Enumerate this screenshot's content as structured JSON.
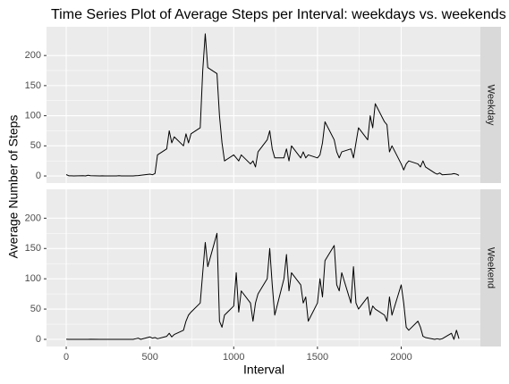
{
  "chart_data": {
    "type": "line",
    "title": "Time Series Plot of Average Steps per Interval: weekdays vs. weekends",
    "x_label": "Interval",
    "y_label": "Average Number of Steps",
    "x": [
      0,
      15,
      30,
      45,
      100,
      115,
      130,
      145,
      200,
      215,
      230,
      245,
      300,
      315,
      330,
      345,
      400,
      415,
      430,
      445,
      500,
      515,
      530,
      545,
      600,
      615,
      630,
      645,
      700,
      715,
      730,
      745,
      800,
      815,
      830,
      845,
      900,
      915,
      930,
      945,
      1000,
      1015,
      1030,
      1045,
      1100,
      1115,
      1130,
      1145,
      1200,
      1215,
      1230,
      1245,
      1300,
      1315,
      1330,
      1345,
      1400,
      1415,
      1430,
      1445,
      1500,
      1515,
      1530,
      1545,
      1600,
      1615,
      1630,
      1645,
      1700,
      1715,
      1730,
      1745,
      1800,
      1815,
      1830,
      1845,
      1900,
      1915,
      1930,
      1945,
      2000,
      2015,
      2030,
      2045,
      2100,
      2115,
      2130,
      2145,
      2200,
      2215,
      2230,
      2245,
      2300,
      2315,
      2330,
      2345
    ],
    "series": [
      {
        "name": "Weekday",
        "color": "#000000",
        "values": [
          2.3,
          0.3,
          0.2,
          0.1,
          0.4,
          0,
          1.2,
          0.5,
          0,
          0.2,
          0,
          0.1,
          0,
          0.5,
          0,
          0,
          0.1,
          0.4,
          0.7,
          1.2,
          3,
          2,
          4,
          35,
          45,
          75,
          55,
          65,
          50,
          70,
          55,
          70,
          80,
          175,
          236,
          180,
          170,
          100,
          55,
          25,
          35,
          30,
          25,
          35,
          20,
          25,
          15,
          40,
          60,
          75,
          45,
          30,
          30,
          45,
          25,
          50,
          30,
          40,
          30,
          35,
          30,
          35,
          55,
          90,
          60,
          40,
          30,
          40,
          45,
          30,
          55,
          80,
          60,
          100,
          80,
          120,
          90,
          85,
          40,
          50,
          20,
          10,
          20,
          25,
          20,
          15,
          25,
          15,
          5,
          3,
          5,
          2,
          3,
          4,
          3,
          1
        ]
      },
      {
        "name": "Weekend",
        "color": "#000000",
        "values": [
          0.2,
          0,
          0,
          0,
          0,
          0,
          0,
          0.1,
          0,
          0,
          0,
          0,
          0,
          0,
          0,
          0,
          0,
          1,
          2,
          0,
          4,
          2,
          3,
          1,
          5,
          10,
          4,
          8,
          15,
          30,
          40,
          45,
          60,
          110,
          160,
          120,
          175,
          30,
          20,
          40,
          55,
          110,
          45,
          80,
          60,
          30,
          60,
          75,
          100,
          150,
          90,
          40,
          100,
          140,
          80,
          110,
          90,
          60,
          70,
          30,
          60,
          100,
          70,
          130,
          155,
          90,
          80,
          110,
          60,
          120,
          60,
          50,
          70,
          40,
          55,
          50,
          40,
          30,
          70,
          40,
          90,
          60,
          20,
          15,
          30,
          20,
          5,
          3,
          0,
          1,
          0,
          1,
          10,
          0,
          15,
          1
        ]
      }
    ],
    "xlim": [
      -117.75,
      2472.75
    ],
    "xticks": [
      0,
      500,
      1000,
      1500,
      2000
    ],
    "ylim": [
      -11.8,
      247.7
    ],
    "yticks": [
      0,
      50,
      100,
      150,
      200
    ],
    "grid": true
  }
}
